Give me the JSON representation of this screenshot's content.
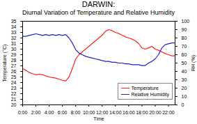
{
  "chart_data": {
    "type": "line",
    "title": "DARWIN:",
    "subtitle": "Diurnal Variation of Temperature and Relative Humidity",
    "xlabel": "Time",
    "ylabel": "Temperature (°C)",
    "y2label": "RH (%)",
    "x": [
      0,
      0.5,
      1,
      1.5,
      2,
      2.5,
      3,
      3.5,
      4,
      4.5,
      5,
      5.5,
      6,
      6.5,
      7,
      7.5,
      8,
      8.5,
      9,
      9.5,
      10,
      10.5,
      11,
      11.5,
      12,
      12.5,
      13,
      13.5,
      14,
      14.5,
      15,
      15.5,
      16,
      16.5,
      17,
      17.5,
      18,
      18.5,
      19,
      19.5,
      20,
      20.5,
      21,
      21.5,
      22,
      22.5,
      23
    ],
    "series": [
      {
        "name": "Temperature",
        "color": "#ff2020",
        "values": [
          26.5,
          26.2,
          25.8,
          25.6,
          25.4,
          25.5,
          25.4,
          25.2,
          25.0,
          24.9,
          24.8,
          24.6,
          24.4,
          24.3,
          25.0,
          26.5,
          28.2,
          29.0,
          29.5,
          30.0,
          30.5,
          31.0,
          31.5,
          32.0,
          32.5,
          33.2,
          33.5,
          33.3,
          33.0,
          32.8,
          32.5,
          32.2,
          32.0,
          31.8,
          31.5,
          31.0,
          30.2,
          30.0,
          30.2,
          30.5,
          30.0,
          29.8,
          29.5,
          29.2,
          29.0,
          28.8,
          28.8
        ]
      },
      {
        "name": "Relative Humidity",
        "color": "#2020cc",
        "axis": "y2",
        "values": [
          82,
          82,
          83,
          84,
          85,
          84,
          83,
          84,
          83,
          84,
          83,
          84,
          83,
          84,
          80,
          74,
          66,
          62,
          60,
          58,
          57,
          56,
          55,
          54,
          53,
          52,
          52,
          51,
          51,
          50,
          50,
          49,
          49,
          48,
          48,
          48,
          47,
          47,
          50,
          52,
          55,
          60,
          68,
          72,
          73,
          74,
          74
        ]
      }
    ],
    "xlim": [
      0,
      23
    ],
    "xticks": [
      {
        "value": 0,
        "label": "0:00"
      },
      {
        "value": 2,
        "label": "2:00"
      },
      {
        "value": 4,
        "label": "4:00"
      },
      {
        "value": 6,
        "label": "6:00"
      },
      {
        "value": 8,
        "label": "8:00"
      },
      {
        "value": 10,
        "label": "10:00"
      },
      {
        "value": 12,
        "label": "12:00"
      },
      {
        "value": 14,
        "label": "14:00"
      },
      {
        "value": 16,
        "label": "16:00"
      },
      {
        "value": 18,
        "label": "18:00"
      },
      {
        "value": 20,
        "label": "20:00"
      },
      {
        "value": 22,
        "label": "22:00"
      }
    ],
    "ylim": [
      20,
      35
    ],
    "yticks": [
      20,
      21,
      22,
      23,
      24,
      25,
      26,
      27,
      28,
      29,
      30,
      31,
      32,
      33,
      34,
      35
    ],
    "y2lim": [
      0,
      100
    ],
    "y2ticks": [
      0,
      10,
      20,
      30,
      40,
      50,
      60,
      70,
      80,
      90,
      100
    ],
    "legend": "lower right",
    "grid": false
  }
}
